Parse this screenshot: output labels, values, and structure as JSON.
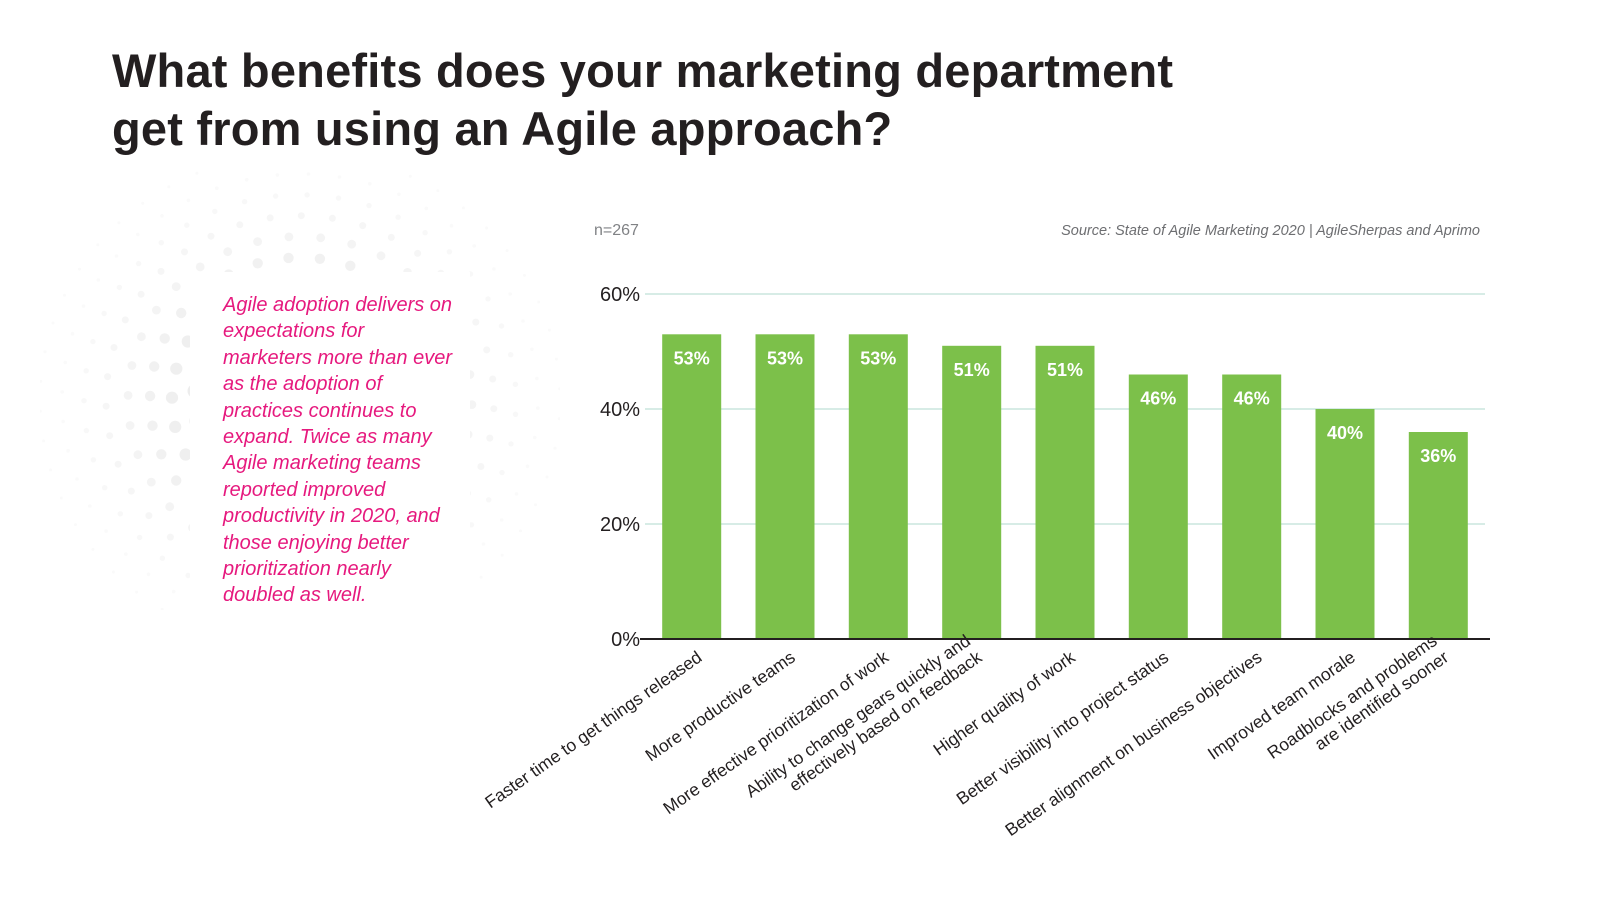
{
  "headline": {
    "line1": "What benefits does your marketing department",
    "line2": "get from using an Agile approach?"
  },
  "callout": "Agile adoption delivers on expectations for marketers more than ever as the adoption of practices continues to expand. Twice as many Agile marketing teams reported improved productivity in 2020, and those enjoying better prioritization nearly doubled as well.",
  "sample_size": "n=267",
  "source": "Source: State of Agile Marketing 2020 | AgileSherpas and Aprimo",
  "colors": {
    "bar": "#7cc04a",
    "gridline": "#bfe0d6",
    "callout": "#e6197e",
    "baseline": "#231f20"
  },
  "chart_data": {
    "type": "bar",
    "title": "",
    "xlabel": "",
    "ylabel": "",
    "ylim": [
      0,
      60
    ],
    "yticks": [
      "0%",
      "20%",
      "40%",
      "60%"
    ],
    "ytick_values": [
      0,
      20,
      40,
      60
    ],
    "grid": true,
    "categories": [
      [
        "Faster time to get things released"
      ],
      [
        "More productive teams"
      ],
      [
        "More effective prioritization of work"
      ],
      [
        "Ability to change gears quickly and",
        "effectively based on feedback"
      ],
      [
        "Higher quality of work"
      ],
      [
        "Better visibility into project status"
      ],
      [
        "Better alignment on business objectives"
      ],
      [
        "Improved team morale"
      ],
      [
        "Roadblocks and problems",
        "are identified sooner"
      ]
    ],
    "values": [
      53,
      53,
      53,
      51,
      51,
      46,
      46,
      40,
      36
    ],
    "value_labels": [
      "53%",
      "53%",
      "53%",
      "51%",
      "51%",
      "46%",
      "46%",
      "40%",
      "36%"
    ]
  }
}
